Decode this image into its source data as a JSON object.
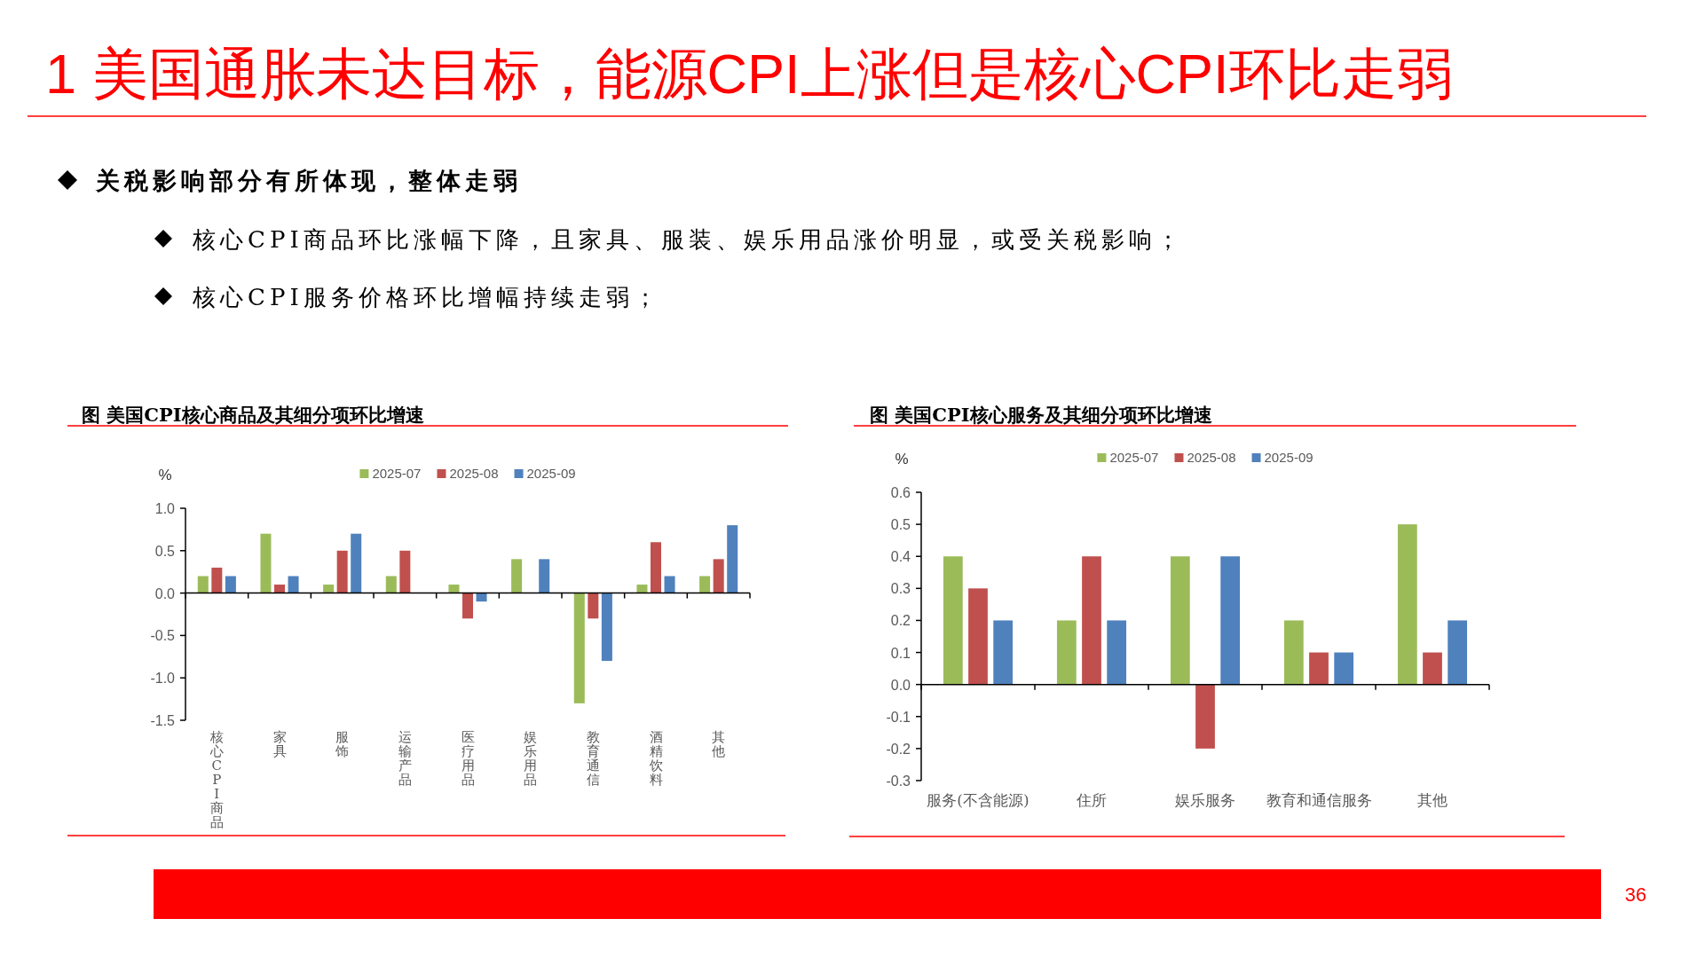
{
  "chart_data": [
    {
      "type": "other",
      "title": "1 美国通胀未达目标，能源CPI上涨但是核心CPI环比走弱",
      "annotations": [
        "关税影响部分有所体现，整体走弱",
        "核心CPI商品环比涨幅下降，且家具、服装、娱乐用品涨价明显，或受关税影响；",
        "核心CPI服务价格环比增幅持续走弱；",
        "36"
      ]
    },
    {
      "type": "bar",
      "title": "图 美国CPI核心商品及其细分项环比增速",
      "ylabel": "%",
      "categories": [
        "核心CPI商品",
        "家具",
        "服饰",
        "运输产品",
        "医疗用品",
        "娱乐用品",
        "教育通信",
        "酒精饮料",
        "其他"
      ],
      "series": [
        {
          "name": "2025-07",
          "color": "#9bbb59",
          "values": [
            0.2,
            0.7,
            0.1,
            0.2,
            0.1,
            0.4,
            -1.3,
            0.1,
            0.2
          ]
        },
        {
          "name": "2025-08",
          "color": "#c0504d",
          "values": [
            0.3,
            0.1,
            0.5,
            0.5,
            -0.3,
            null,
            -0.3,
            0.6,
            0.4
          ]
        },
        {
          "name": "2025-09",
          "color": "#4f81bd",
          "values": [
            0.2,
            0.2,
            0.7,
            null,
            -0.1,
            0.4,
            -0.8,
            0.2,
            0.8
          ]
        }
      ],
      "ylim": [
        -1.5,
        1
      ],
      "yticks": [
        -1.5,
        {
          "value": -1,
          "label": "-1.0"
        },
        -0.5,
        {
          "value": 0,
          "label": "0.0"
        },
        0.5,
        {
          "value": 1,
          "label": "1.0"
        }
      ],
      "legend": "top"
    },
    {
      "type": "bar",
      "title": "图 美国CPI核心服务及其细分项环比增速",
      "ylabel": "%",
      "categories": [
        "服务(不含能源)",
        "住所",
        "娱乐服务",
        "教育和通信服务",
        "其他"
      ],
      "series": [
        {
          "name": "2025-07",
          "color": "#9bbb59",
          "values": [
            0.4,
            0.2,
            0.4,
            0.2,
            0.5
          ]
        },
        {
          "name": "2025-08",
          "color": "#c0504d",
          "values": [
            0.3,
            0.4,
            -0.2,
            0.1,
            0.1
          ]
        },
        {
          "name": "2025-09",
          "color": "#4f81bd",
          "values": [
            0.2,
            0.2,
            0.4,
            0.1,
            0.2
          ]
        }
      ],
      "ylim": [
        -0.3,
        0.6
      ],
      "yticks": [
        -0.3,
        -0.2,
        -0.1,
        {
          "value": 0,
          "label": "0.0"
        },
        0.1,
        0.2,
        0.3,
        0.4,
        0.5,
        0.6
      ],
      "legend": "top"
    }
  ]
}
